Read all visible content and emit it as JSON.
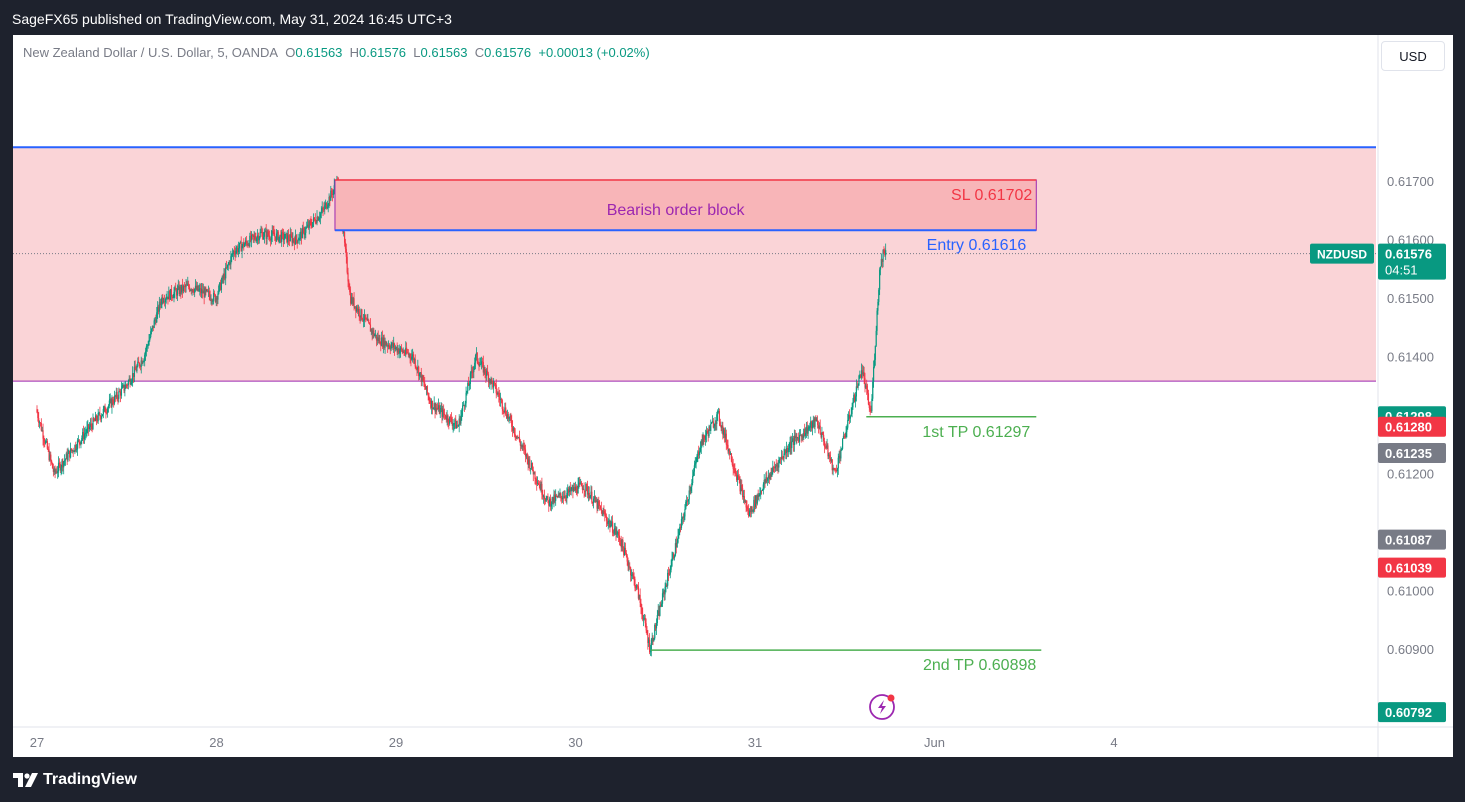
{
  "header": {
    "title": "SageFX65 published on TradingView.com, May 31, 2024 16:45 UTC+3"
  },
  "legend": {
    "symbol_desc": "New Zealand Dollar / U.S. Dollar, 5, OANDA",
    "o_label": "O",
    "o_value": "0.61563",
    "h_label": "H",
    "h_value": "0.61576",
    "l_label": "L",
    "l_value": "0.61563",
    "c_label": "C",
    "c_value": "0.61576",
    "change": "+0.00013 (+0.02%)"
  },
  "currency_button": "USD",
  "footer": {
    "brand": "TradingView"
  },
  "colors": {
    "up": "#089981",
    "down": "#f23645",
    "zone_fill": "#fad4d7",
    "order_block_fill": "#f8b5b8",
    "order_block_text": "#9c27b0",
    "entry": "#2962ff",
    "tp": "#4caf50",
    "sl": "#f23645"
  },
  "annotations": {
    "order_block_label": "Bearish order block",
    "sl_label": "SL 0.61702",
    "entry_label": "Entry  0.61616",
    "tp1_label": "1st TP 0.61297",
    "tp2_label": "2nd TP 0.60898"
  },
  "chart_data": {
    "type": "candlestick",
    "symbol": "NZDUSD",
    "timeframe": "5",
    "ylim": [
      0.6077,
      0.6189
    ],
    "y_ticks": [
      "0.61700",
      "0.61600",
      "0.61500",
      "0.61400",
      "0.61200",
      "0.61000",
      "0.60900"
    ],
    "x_ticks": [
      "27",
      "28",
      "29",
      "30",
      "31",
      "Jun",
      "4"
    ],
    "price_path": [
      [
        27.0,
        0.6131
      ],
      [
        27.1,
        0.612
      ],
      [
        27.3,
        0.6128
      ],
      [
        27.5,
        0.6135
      ],
      [
        27.6,
        0.614
      ],
      [
        27.7,
        0.615
      ],
      [
        27.85,
        0.6152
      ],
      [
        28.0,
        0.615
      ],
      [
        28.1,
        0.6158
      ],
      [
        28.25,
        0.6161
      ],
      [
        28.45,
        0.616
      ],
      [
        28.6,
        0.6165
      ],
      [
        28.68,
        0.617
      ],
      [
        28.75,
        0.615
      ],
      [
        28.9,
        0.6143
      ],
      [
        29.1,
        0.614
      ],
      [
        29.2,
        0.6132
      ],
      [
        29.35,
        0.6128
      ],
      [
        29.45,
        0.614
      ],
      [
        29.55,
        0.6135
      ],
      [
        29.7,
        0.6125
      ],
      [
        29.85,
        0.6115
      ],
      [
        30.05,
        0.6118
      ],
      [
        30.25,
        0.6109
      ],
      [
        30.35,
        0.61
      ],
      [
        30.42,
        0.609
      ],
      [
        30.5,
        0.61
      ],
      [
        30.6,
        0.6112
      ],
      [
        30.7,
        0.6125
      ],
      [
        30.8,
        0.613
      ],
      [
        30.9,
        0.612
      ],
      [
        30.97,
        0.6113
      ],
      [
        31.05,
        0.6118
      ],
      [
        31.2,
        0.6125
      ],
      [
        31.35,
        0.6129
      ],
      [
        31.45,
        0.612
      ],
      [
        31.55,
        0.6132
      ],
      [
        31.6,
        0.6138
      ],
      [
        31.65,
        0.613
      ],
      [
        31.7,
        0.6155
      ],
      [
        31.72,
        0.6158
      ],
      [
        31.73,
        0.6158
      ]
    ],
    "zones": {
      "premium_zone": [
        0.61358,
        0.61758
      ],
      "order_block": [
        0.61616,
        0.61702
      ]
    },
    "levels": {
      "sl": 0.61702,
      "entry": 0.61616,
      "tp1": 0.61297,
      "tp2": 0.60898,
      "blue_line": 0.61758
    },
    "price_labels": [
      {
        "value": "0.61576",
        "countdown": "04:51",
        "tag": "NZDUSD",
        "color": "#089981",
        "y": 0.61576
      },
      {
        "value": "0.61298",
        "color": "#089981",
        "y": 0.61298
      },
      {
        "value": "0.61280",
        "color": "#f23645",
        "y": 0.6128
      },
      {
        "value": "0.61235",
        "color": "#787b86",
        "y": 0.61235
      },
      {
        "value": "0.61087",
        "color": "#787b86",
        "y": 0.61087
      },
      {
        "value": "0.61039",
        "color": "#f23645",
        "y": 0.61039
      },
      {
        "value": "0.60792",
        "color": "#089981",
        "y": 0.60792
      }
    ]
  }
}
